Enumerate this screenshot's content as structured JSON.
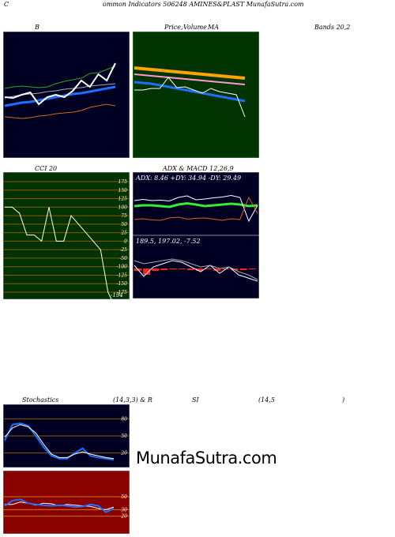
{
  "header": {
    "left_c": "C",
    "title": "ommon  Indicators 506248  AMINES&PLAST MunafaSutra.com"
  },
  "labels": {
    "b": "B",
    "price_ma": "Price,",
    "volume": "Volume",
    "ma": "MA",
    "bands": "Bands 20,2",
    "cci": "CCI 20",
    "adx_macd": "ADX  & MACD 12,26,9",
    "stoch": "Stochastics",
    "stoch_params": "(14,3,3) & R",
    "si": "SI",
    "rsi_params": "(14,5",
    "rsi_close": ")"
  },
  "watermark": "MunafaSutra.com",
  "colors": {
    "panel_dark": "#000022",
    "panel_green": "#003300",
    "panel_red": "#880000",
    "grid_brown": "#8b5a00",
    "blue": "#1e6fff",
    "orange": "#d2691e",
    "green": "#22aa22",
    "bright_green": "#33ee33"
  },
  "chart_data": [
    {
      "type": "line",
      "name": "bollinger-bands",
      "series": [
        {
          "values": [
            72,
            71,
            70,
            71,
            73,
            74,
            76,
            77,
            78,
            80,
            84,
            86,
            88,
            86
          ]
        },
        {
          "values": [
            86,
            88,
            90,
            91,
            93,
            95,
            97,
            99,
            101,
            102,
            104,
            106,
            108,
            110
          ]
        },
        {
          "values": [
            96,
            98,
            100,
            101,
            102,
            104,
            105,
            107,
            108,
            109,
            111,
            112,
            113,
            114
          ]
        },
        {
          "values": [
            108,
            110,
            111,
            110,
            109,
            110,
            114,
            117,
            119,
            121,
            127,
            128,
            132,
            136
          ]
        },
        {
          "values": [
            97,
            96,
            100,
            103,
            88,
            97,
            100,
            97,
            105,
            118,
            110,
            126,
            118,
            140
          ]
        }
      ]
    },
    {
      "type": "line",
      "name": "price-volume-ma",
      "series": [
        {
          "values": [
            84,
            85,
            86,
            87,
            88,
            89,
            90,
            91,
            92,
            93,
            94,
            95,
            96,
            97
          ]
        },
        {
          "values": [
            92,
            93,
            94,
            95,
            96,
            97,
            98,
            99,
            100,
            101,
            102,
            103,
            104,
            105
          ]
        },
        {
          "values": [
            102,
            103,
            104,
            106,
            108,
            110,
            112,
            114,
            116,
            118,
            120,
            122,
            124,
            126
          ]
        },
        {
          "values": [
            112,
            112,
            110,
            110,
            96,
            109,
            108,
            112,
            116,
            110,
            114,
            116,
            118,
            146
          ]
        }
      ]
    },
    {
      "type": "line",
      "name": "cci",
      "y_ticks": [
        175,
        150,
        125,
        100,
        75,
        50,
        25,
        0,
        -25,
        -50,
        -100,
        -125,
        -150,
        -175
      ],
      "last_value_label": "-194",
      "values": [
        100,
        100,
        82,
        18,
        18,
        0,
        100,
        0,
        0,
        75,
        50,
        25,
        0,
        -25,
        -150,
        -194
      ]
    },
    {
      "type": "line",
      "name": "adx-macd",
      "adx_label": "ADX: 8.46   +DY: 34.94  -DY: 29.49",
      "macd_label": "189.5,  197.02,  -7.52",
      "adx_series": [
        {
          "values": [
            58,
            60,
            60,
            58,
            56,
            62,
            65,
            62,
            58,
            60,
            62,
            64,
            62,
            58,
            60
          ]
        },
        {
          "values": [
            72,
            75,
            72,
            73,
            71,
            80,
            84,
            74,
            76,
            79,
            81,
            85,
            80,
            20,
            60
          ]
        },
        {
          "values": [
            24,
            26,
            23,
            22,
            28,
            30,
            25,
            27,
            28,
            25,
            22,
            26,
            24,
            80,
            40
          ]
        }
      ],
      "macd_series": [
        {
          "values": [
            0.2,
            -0.5,
            0.1,
            0.3,
            0.5,
            0.4,
            0.1,
            -0.2,
            0.2,
            -0.3,
            0.1,
            -0.4,
            -0.6,
            -0.8
          ]
        },
        {
          "values": [
            0.5,
            0.3,
            0.4,
            0.5,
            0.6,
            0.5,
            0.3,
            0.1,
            0.2,
            0.0,
            0.1,
            -0.2,
            -0.4,
            -0.7
          ]
        },
        {
          "values": [
            -0.3,
            -0.8,
            -0.3,
            -0.2,
            -0.1,
            -0.1,
            -0.2,
            -0.3,
            0.0,
            -0.3,
            0.0,
            -0.2,
            -0.2,
            -0.1
          ]
        }
      ]
    },
    {
      "type": "line",
      "name": "stochastics",
      "y_ticks": [
        80,
        50,
        20
      ],
      "series": [
        {
          "values": [
            42,
            70,
            72,
            68,
            50,
            30,
            15,
            10,
            10,
            20,
            28,
            15,
            12,
            10,
            8
          ]
        },
        {
          "values": [
            48,
            64,
            70,
            66,
            55,
            35,
            18,
            12,
            12,
            18,
            22,
            18,
            15,
            12,
            10
          ]
        }
      ]
    },
    {
      "type": "line",
      "name": "rsi",
      "y_ticks": [
        50,
        30,
        20
      ],
      "series": [
        {
          "values": [
            38,
            38,
            42,
            40,
            37,
            40,
            39,
            36,
            38,
            37,
            36,
            35,
            32,
            30,
            34
          ]
        },
        {
          "values": [
            36,
            44,
            46,
            40,
            38,
            37,
            36,
            37,
            36,
            34,
            35,
            38,
            36,
            26,
            32
          ]
        }
      ]
    }
  ]
}
